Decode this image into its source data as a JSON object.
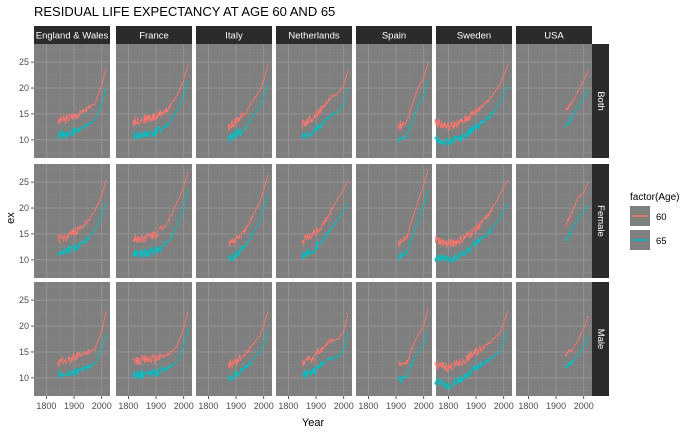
{
  "chart_data": {
    "type": "line",
    "title": "RESIDUAL LIFE EXPECTANCY AT AGE 60 AND 65",
    "xlabel": "Year",
    "ylabel": "ex",
    "xlim": [
      1755,
      2030
    ],
    "ylim": [
      6.5,
      28.5
    ],
    "x_ticks": [
      1800,
      1900,
      2000
    ],
    "x_tick_labels": [
      "1800",
      "1900",
      "2000"
    ],
    "y_ticks": [
      10,
      15,
      20,
      25
    ],
    "y_tick_labels": [
      "10",
      "15",
      "20",
      "25"
    ],
    "grid": true,
    "legend": {
      "title": "factor(Age)",
      "position": "right",
      "entries": [
        "60",
        "65"
      ]
    },
    "colors": {
      "60": "#f8766d",
      "65": "#00bfc4",
      "panel_bg": "#7f7f7f",
      "strip_bg": "#2b2b2b",
      "grid": "#969696"
    },
    "countries": [
      "England & Wales",
      "France",
      "Italy",
      "Netherlands",
      "Spain",
      "Sweden",
      "USA"
    ],
    "strip_labels": [
      "England & Wales",
      "France",
      "Italy",
      "Netherlands",
      "Spain",
      "Sweden",
      "USA"
    ],
    "sexes": [
      "Both",
      "Female",
      "Male"
    ],
    "panels": [
      {
        "country": "England & Wales",
        "sex": "Both",
        "series": [
          {
            "name": "60",
            "x": [
              1841,
              1880,
              1920,
              1950,
              1975,
              2000,
              2016
            ],
            "y": [
              13.5,
              14.2,
              15.2,
              16.0,
              17.0,
              20.5,
              24.0
            ]
          },
          {
            "name": "65",
            "x": [
              1841,
              1880,
              1920,
              1950,
              1975,
              2000,
              2016
            ],
            "y": [
              10.8,
              11.3,
              12.0,
              12.8,
              13.8,
              17.0,
              20.0
            ]
          }
        ]
      },
      {
        "country": "France",
        "sex": "Both",
        "series": [
          {
            "name": "60",
            "x": [
              1816,
              1860,
              1900,
              1945,
              1975,
              2000,
              2016
            ],
            "y": [
              13.5,
              14.0,
              14.5,
              16.0,
              18.5,
              21.5,
              24.5
            ]
          },
          {
            "name": "65",
            "x": [
              1816,
              1860,
              1900,
              1945,
              1975,
              2000,
              2016
            ],
            "y": [
              10.8,
              11.0,
              11.5,
              13.0,
              15.5,
              18.5,
              21.5
            ]
          }
        ]
      },
      {
        "country": "Italy",
        "sex": "Both",
        "series": [
          {
            "name": "60",
            "x": [
              1872,
              1900,
              1930,
              1960,
              1985,
              2000,
              2016
            ],
            "y": [
              12.5,
              13.5,
              15.0,
              17.5,
              19.5,
              21.5,
              24.5
            ]
          },
          {
            "name": "65",
            "x": [
              1872,
              1900,
              1930,
              1960,
              1985,
              2000,
              2016
            ],
            "y": [
              10.0,
              11.0,
              12.0,
              14.5,
              16.5,
              18.0,
              21.0
            ]
          }
        ]
      },
      {
        "country": "Netherlands",
        "sex": "Both",
        "series": [
          {
            "name": "60",
            "x": [
              1850,
              1880,
              1920,
              1950,
              1980,
              2000,
              2016
            ],
            "y": [
              13.0,
              14.0,
              16.0,
              18.0,
              19.0,
              20.5,
              23.5
            ]
          },
          {
            "name": "65",
            "x": [
              1850,
              1880,
              1920,
              1950,
              1980,
              2000,
              2016
            ],
            "y": [
              10.5,
              11.0,
              13.0,
              14.5,
              15.5,
              17.0,
              20.0
            ]
          }
        ]
      },
      {
        "country": "Spain",
        "sex": "Both",
        "series": [
          {
            "name": "60",
            "x": [
              1908,
              1940,
              1960,
              1980,
              2000,
              2016
            ],
            "y": [
              12.5,
              13.5,
              17.0,
              20.0,
              22.0,
              25.0
            ]
          },
          {
            "name": "65",
            "x": [
              1908,
              1940,
              1960,
              1980,
              2000,
              2016
            ],
            "y": [
              10.0,
              10.8,
              14.0,
              16.5,
              18.5,
              21.5
            ]
          }
        ]
      },
      {
        "country": "Sweden",
        "sex": "Both",
        "series": [
          {
            "name": "60",
            "x": [
              1751,
              1800,
              1850,
              1900,
              1950,
              1985,
              2016
            ],
            "y": [
              13.5,
              12.5,
              13.5,
              15.5,
              18.0,
              20.5,
              24.5
            ]
          },
          {
            "name": "65",
            "x": [
              1751,
              1800,
              1850,
              1900,
              1950,
              1985,
              2016
            ],
            "y": [
              10.0,
              9.5,
              10.5,
              12.5,
              14.5,
              17.0,
              20.5
            ]
          }
        ]
      },
      {
        "country": "USA",
        "sex": "Both",
        "series": [
          {
            "name": "60",
            "x": [
              1933,
              1960,
              1980,
              2000,
              2016
            ],
            "y": [
              15.5,
              17.5,
              19.5,
              21.5,
              23.5
            ]
          },
          {
            "name": "65",
            "x": [
              1933,
              1960,
              1980,
              2000,
              2016
            ],
            "y": [
              12.5,
              14.5,
              16.5,
              18.0,
              19.5
            ]
          }
        ]
      },
      {
        "country": "England & Wales",
        "sex": "Female",
        "series": [
          {
            "name": "60",
            "x": [
              1841,
              1880,
              1920,
              1950,
              1975,
              2000,
              2016
            ],
            "y": [
              14.0,
              14.5,
              16.0,
              17.5,
              19.5,
              22.5,
              25.5
            ]
          },
          {
            "name": "65",
            "x": [
              1841,
              1880,
              1920,
              1950,
              1975,
              2000,
              2016
            ],
            "y": [
              11.3,
              11.8,
              12.8,
              14.0,
              15.8,
              18.5,
              21.0
            ]
          }
        ]
      },
      {
        "country": "France",
        "sex": "Female",
        "series": [
          {
            "name": "60",
            "x": [
              1816,
              1860,
              1900,
              1945,
              1975,
              2000,
              2016
            ],
            "y": [
              14.0,
              14.3,
              15.0,
              17.5,
              21.0,
              24.0,
              27.0
            ]
          },
          {
            "name": "65",
            "x": [
              1816,
              1860,
              1900,
              1945,
              1975,
              2000,
              2016
            ],
            "y": [
              11.0,
              11.2,
              11.8,
              13.5,
              16.5,
              20.0,
              23.5
            ]
          }
        ]
      },
      {
        "country": "Italy",
        "sex": "Female",
        "series": [
          {
            "name": "60",
            "x": [
              1872,
              1900,
              1930,
              1960,
              1985,
              2000,
              2016
            ],
            "y": [
              12.8,
              13.8,
              15.5,
              18.5,
              21.0,
              23.5,
              26.5
            ]
          },
          {
            "name": "65",
            "x": [
              1872,
              1900,
              1930,
              1960,
              1985,
              2000,
              2016
            ],
            "y": [
              10.2,
              11.0,
              12.5,
              15.0,
              17.5,
              20.0,
              22.5
            ]
          }
        ]
      },
      {
        "country": "Netherlands",
        "sex": "Female",
        "series": [
          {
            "name": "60",
            "x": [
              1850,
              1880,
              1920,
              1950,
              1980,
              2000,
              2016
            ],
            "y": [
              13.5,
              14.5,
              16.5,
              19.0,
              22.0,
              23.5,
              25.5
            ]
          },
          {
            "name": "65",
            "x": [
              1850,
              1880,
              1920,
              1950,
              1980,
              2000,
              2016
            ],
            "y": [
              10.8,
              11.5,
              13.5,
              15.5,
              18.0,
              19.5,
              21.0
            ]
          }
        ]
      },
      {
        "country": "Spain",
        "sex": "Female",
        "series": [
          {
            "name": "60",
            "x": [
              1908,
              1940,
              1960,
              1980,
              2000,
              2016
            ],
            "y": [
              13.0,
              14.5,
              18.0,
              21.5,
              24.5,
              27.5
            ]
          },
          {
            "name": "65",
            "x": [
              1908,
              1940,
              1960,
              1980,
              2000,
              2016
            ],
            "y": [
              10.5,
              11.5,
              14.5,
              17.5,
              20.5,
              23.5
            ]
          }
        ]
      },
      {
        "country": "Sweden",
        "sex": "Female",
        "series": [
          {
            "name": "60",
            "x": [
              1751,
              1800,
              1850,
              1900,
              1950,
              1985,
              2016
            ],
            "y": [
              14.0,
              13.0,
              14.0,
              16.0,
              19.0,
              22.5,
              25.5
            ]
          },
          {
            "name": "65",
            "x": [
              1751,
              1800,
              1850,
              1900,
              1950,
              1985,
              2016
            ],
            "y": [
              10.5,
              10.0,
              11.0,
              13.0,
              15.5,
              18.0,
              21.0
            ]
          }
        ]
      },
      {
        "country": "USA",
        "sex": "Female",
        "series": [
          {
            "name": "60",
            "x": [
              1933,
              1960,
              1980,
              2000,
              2016
            ],
            "y": [
              16.5,
              19.5,
              22.0,
              23.0,
              25.0
            ]
          },
          {
            "name": "65",
            "x": [
              1933,
              1960,
              1980,
              2000,
              2016
            ],
            "y": [
              13.5,
              16.0,
              18.0,
              19.5,
              20.5
            ]
          }
        ]
      },
      {
        "country": "England & Wales",
        "sex": "Male",
        "series": [
          {
            "name": "60",
            "x": [
              1841,
              1880,
              1920,
              1950,
              1975,
              2000,
              2016
            ],
            "y": [
              13.0,
              13.5,
              14.5,
              15.0,
              15.5,
              19.0,
              23.0
            ]
          },
          {
            "name": "65",
            "x": [
              1841,
              1880,
              1920,
              1950,
              1975,
              2000,
              2016
            ],
            "y": [
              10.5,
              10.8,
              11.5,
              12.0,
              12.8,
              15.5,
              18.5
            ]
          }
        ]
      },
      {
        "country": "France",
        "sex": "Male",
        "series": [
          {
            "name": "60",
            "x": [
              1816,
              1860,
              1900,
              1945,
              1975,
              2000,
              2016
            ],
            "y": [
              13.0,
              13.5,
              13.8,
              14.5,
              16.0,
              19.5,
              23.0
            ]
          },
          {
            "name": "65",
            "x": [
              1816,
              1860,
              1900,
              1945,
              1975,
              2000,
              2016
            ],
            "y": [
              10.5,
              10.8,
              11.0,
              12.0,
              13.0,
              16.0,
              19.5
            ]
          }
        ]
      },
      {
        "country": "Italy",
        "sex": "Male",
        "series": [
          {
            "name": "60",
            "x": [
              1872,
              1900,
              1930,
              1960,
              1985,
              2000,
              2016
            ],
            "y": [
              12.5,
              13.0,
              14.5,
              16.5,
              18.0,
              20.0,
              23.0
            ]
          },
          {
            "name": "65",
            "x": [
              1872,
              1900,
              1930,
              1960,
              1985,
              2000,
              2016
            ],
            "y": [
              10.0,
              10.5,
              11.8,
              13.5,
              15.0,
              16.5,
              19.0
            ]
          }
        ]
      },
      {
        "country": "Netherlands",
        "sex": "Male",
        "series": [
          {
            "name": "60",
            "x": [
              1850,
              1880,
              1920,
              1950,
              1980,
              2000,
              2016
            ],
            "y": [
              12.8,
              13.5,
              15.5,
              17.0,
              17.5,
              19.0,
              22.5
            ]
          },
          {
            "name": "65",
            "x": [
              1850,
              1880,
              1920,
              1950,
              1980,
              2000,
              2016
            ],
            "y": [
              10.5,
              10.8,
              12.5,
              13.8,
              14.0,
              15.5,
              19.0
            ]
          }
        ]
      },
      {
        "country": "Spain",
        "sex": "Male",
        "series": [
          {
            "name": "60",
            "x": [
              1908,
              1940,
              1960,
              1980,
              2000,
              2016
            ],
            "y": [
              12.5,
              13.0,
              16.0,
              18.5,
              20.0,
              23.5
            ]
          },
          {
            "name": "65",
            "x": [
              1908,
              1940,
              1960,
              1980,
              2000,
              2016
            ],
            "y": [
              9.5,
              10.5,
              13.0,
              15.0,
              16.5,
              19.0
            ]
          }
        ]
      },
      {
        "country": "Sweden",
        "sex": "Male",
        "series": [
          {
            "name": "60",
            "x": [
              1751,
              1800,
              1850,
              1900,
              1950,
              1985,
              2016
            ],
            "y": [
              12.5,
              12.0,
              13.0,
              15.0,
              17.0,
              18.5,
              23.0
            ]
          },
          {
            "name": "65",
            "x": [
              1751,
              1800,
              1850,
              1900,
              1950,
              1985,
              2016
            ],
            "y": [
              9.5,
              8.5,
              10.0,
              12.0,
              13.5,
              15.0,
              19.0
            ]
          }
        ]
      },
      {
        "country": "USA",
        "sex": "Male",
        "series": [
          {
            "name": "60",
            "x": [
              1933,
              1960,
              1980,
              2000,
              2016
            ],
            "y": [
              14.5,
              15.5,
              17.5,
              19.5,
              22.0
            ]
          },
          {
            "name": "65",
            "x": [
              1933,
              1960,
              1980,
              2000,
              2016
            ],
            "y": [
              12.0,
              13.0,
              14.5,
              16.0,
              18.0
            ]
          }
        ]
      }
    ]
  }
}
